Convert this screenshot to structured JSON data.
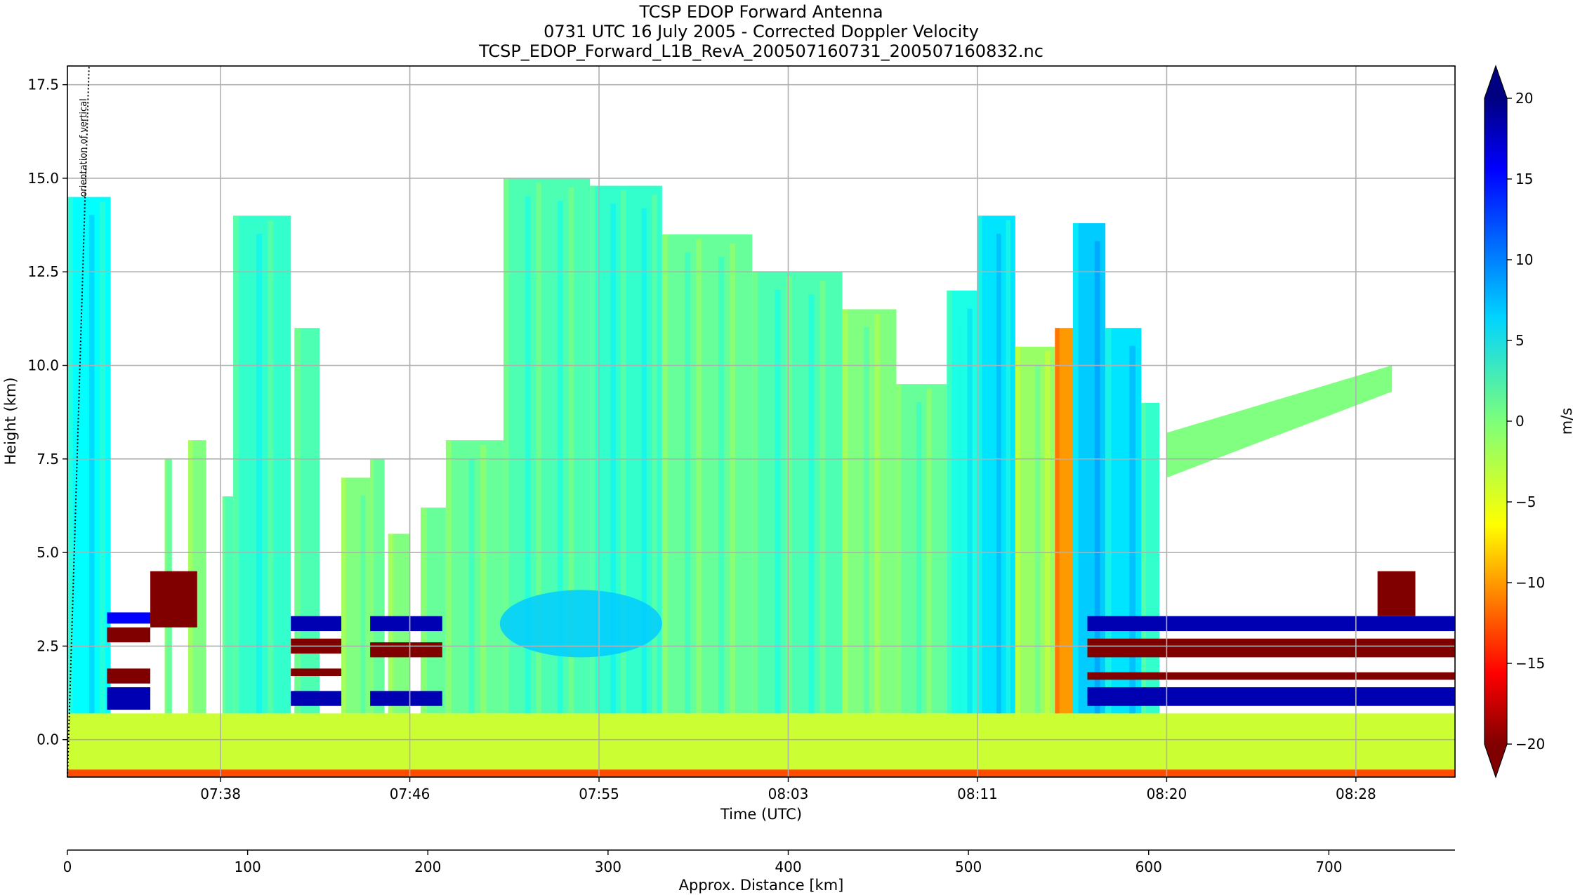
{
  "chart_data": {
    "type": "heatmap",
    "title": [
      "TCSP EDOP Forward Antenna",
      "0731 UTC 16 July 2005 - Corrected Doppler Velocity",
      "TCSP_EDOP_Forward_L1B_RevA_200507160731_200507160832.nc"
    ],
    "xlabel": "Time (UTC)",
    "ylabel": "Height (km)",
    "x_tick_labels": [
      "07:38",
      "07:46",
      "07:55",
      "08:03",
      "08:11",
      "08:20",
      "08:28"
    ],
    "x_tick_positions_km": [
      85,
      190,
      295,
      400,
      505,
      610,
      715
    ],
    "ylim": [
      -1.0,
      18.0
    ],
    "y_ticks": [
      0.0,
      2.5,
      5.0,
      7.5,
      10.0,
      12.5,
      15.0,
      17.5
    ],
    "y_tick_labels": [
      "0.0",
      "2.5",
      "5.0",
      "7.5",
      "10.0",
      "12.5",
      "15.0",
      "17.5"
    ],
    "grid": true,
    "annotation": {
      "text": "orientation of vertical",
      "line": [
        {
          "x_km": 0,
          "y_km": -1.0
        },
        {
          "x_km": 12,
          "y_km": 18.0
        }
      ]
    },
    "distance_axis": {
      "label": "Approx. Distance [km]",
      "xlim": [
        0,
        770
      ],
      "ticks": [
        0,
        100,
        200,
        300,
        400,
        500,
        600,
        700
      ],
      "tick_labels": [
        "0",
        "100",
        "200",
        "300",
        "400",
        "500",
        "600",
        "700"
      ]
    },
    "colorbar": {
      "label": "m/s",
      "colormap": "jet_r",
      "vmin": -20,
      "vmax": 20,
      "ticks": [
        -20,
        -15,
        -10,
        -5,
        0,
        5,
        10,
        15,
        20
      ],
      "tick_labels": [
        "−20",
        "−15",
        "−10",
        "−5",
        "0",
        "5",
        "10",
        "15",
        "20"
      ],
      "extend": "both"
    },
    "velocity_field": {
      "description_units": "x in km along track, height in km, velocity in m/s",
      "surface_band": {
        "bottom": -1.0,
        "top": 0.7,
        "velocity": -3
      },
      "surface_strip": {
        "bottom": -1.0,
        "top": -0.8,
        "velocity": -12
      },
      "echo_columns": [
        {
          "x0": 0,
          "x1": 24,
          "top": 14.5,
          "velocity": 5
        },
        {
          "x0": 54,
          "x1": 58,
          "top": 7.5,
          "velocity": 1
        },
        {
          "x0": 67,
          "x1": 77,
          "top": 8.0,
          "velocity": 0
        },
        {
          "x0": 86,
          "x1": 92,
          "top": 6.5,
          "velocity": 2
        },
        {
          "x0": 92,
          "x1": 124,
          "top": 14.0,
          "velocity": 3
        },
        {
          "x0": 126,
          "x1": 140,
          "top": 11.0,
          "velocity": 2
        },
        {
          "x0": 152,
          "x1": 168,
          "top": 7.0,
          "velocity": 0
        },
        {
          "x0": 168,
          "x1": 176,
          "top": 7.5,
          "velocity": 1
        },
        {
          "x0": 178,
          "x1": 190,
          "top": 5.5,
          "velocity": 0
        },
        {
          "x0": 196,
          "x1": 210,
          "top": 6.2,
          "velocity": 1
        },
        {
          "x0": 210,
          "x1": 242,
          "top": 8.0,
          "velocity": 1
        },
        {
          "x0": 242,
          "x1": 290,
          "top": 15.0,
          "velocity": 2
        },
        {
          "x0": 290,
          "x1": 330,
          "top": 14.8,
          "velocity": 3
        },
        {
          "x0": 330,
          "x1": 380,
          "top": 13.5,
          "velocity": 1
        },
        {
          "x0": 380,
          "x1": 430,
          "top": 12.5,
          "velocity": 2
        },
        {
          "x0": 430,
          "x1": 460,
          "top": 11.5,
          "velocity": 0
        },
        {
          "x0": 460,
          "x1": 488,
          "top": 9.5,
          "velocity": 1
        },
        {
          "x0": 488,
          "x1": 505,
          "top": 12.0,
          "velocity": 4
        },
        {
          "x0": 505,
          "x1": 526,
          "top": 14.0,
          "velocity": 6
        },
        {
          "x0": 526,
          "x1": 548,
          "top": 10.5,
          "velocity": -1
        },
        {
          "x0": 548,
          "x1": 558,
          "top": 11.0,
          "velocity": -9
        },
        {
          "x0": 558,
          "x1": 576,
          "top": 13.8,
          "velocity": 7
        },
        {
          "x0": 576,
          "x1": 596,
          "top": 11.0,
          "velocity": 6
        },
        {
          "x0": 596,
          "x1": 606,
          "top": 9.0,
          "velocity": 3
        }
      ],
      "bright_band": {
        "bottom": 2.2,
        "top": 4.0,
        "x0": 240,
        "x1": 330,
        "velocity": 7
      },
      "anvil": {
        "x0": 610,
        "x1": 735,
        "bottom": 7.0,
        "top": 10.0,
        "velocity": 0
      },
      "surface_clutter": [
        {
          "x0": 22,
          "x1": 46,
          "rows": [
            [
              3.1,
              3.4,
              15
            ],
            [
              2.6,
              3.0,
              -20
            ],
            [
              1.5,
              1.9,
              -20
            ],
            [
              0.8,
              1.4,
              18
            ]
          ]
        },
        {
          "x0": 46,
          "x1": 72,
          "rows": [
            [
              3.0,
              4.5,
              -20
            ]
          ]
        },
        {
          "x0": 124,
          "x1": 152,
          "rows": [
            [
              2.9,
              3.3,
              18
            ],
            [
              2.3,
              2.7,
              -20
            ],
            [
              1.7,
              1.9,
              -20
            ],
            [
              0.9,
              1.3,
              18
            ]
          ]
        },
        {
          "x0": 168,
          "x1": 208,
          "rows": [
            [
              2.9,
              3.3,
              18
            ],
            [
              2.2,
              2.6,
              -20
            ],
            [
              0.9,
              1.3,
              18
            ]
          ]
        },
        {
          "x0": 566,
          "x1": 770,
          "rows": [
            [
              2.9,
              3.3,
              18
            ],
            [
              2.2,
              2.7,
              -20
            ],
            [
              1.6,
              1.8,
              -20
            ],
            [
              0.9,
              1.4,
              18
            ]
          ]
        },
        {
          "x0": 727,
          "x1": 748,
          "rows": [
            [
              3.3,
              4.5,
              -20
            ]
          ]
        }
      ]
    }
  }
}
